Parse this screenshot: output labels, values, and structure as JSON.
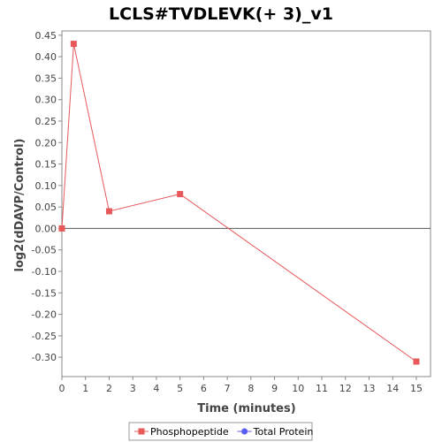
{
  "chart_data": {
    "type": "line",
    "title": "LCLS#TVDLEVK(+ 3)_v1",
    "xlabel": "Time (minutes)",
    "ylabel": "log2(dDAVP/Control)",
    "xlim": [
      0,
      15.6
    ],
    "ylim": [
      -0.345,
      0.46
    ],
    "xticks": [
      0,
      1,
      2,
      3,
      4,
      5,
      6,
      7,
      8,
      9,
      10,
      11,
      12,
      13,
      14,
      15
    ],
    "yticks": [
      0.45,
      0.4,
      0.35,
      0.3,
      0.25,
      0.2,
      0.15,
      0.1,
      0.05,
      0.0,
      -0.05,
      -0.1,
      -0.15,
      -0.2,
      -0.25,
      -0.3
    ],
    "ytick_labels": [
      "0.45",
      "0.40",
      "0.35",
      "0.30",
      "0.25",
      "0.20",
      "0.15",
      "0.10",
      "0.05",
      "0.00",
      "-0.05",
      "-0.10",
      "-0.15",
      "-0.20",
      "-0.25",
      "-0.30"
    ],
    "grid": false,
    "zero_line": true,
    "legend_position": "bottom",
    "series": [
      {
        "name": "Phosphopeptide",
        "color": "#e8595b",
        "marker": "square",
        "x": [
          0,
          0.5,
          2,
          5,
          15
        ],
        "y": [
          0.0,
          0.43,
          0.04,
          0.08,
          -0.31
        ]
      },
      {
        "name": "Total Protein",
        "color": "#5b5bf0",
        "marker": "circle",
        "x": [],
        "y": []
      }
    ]
  }
}
